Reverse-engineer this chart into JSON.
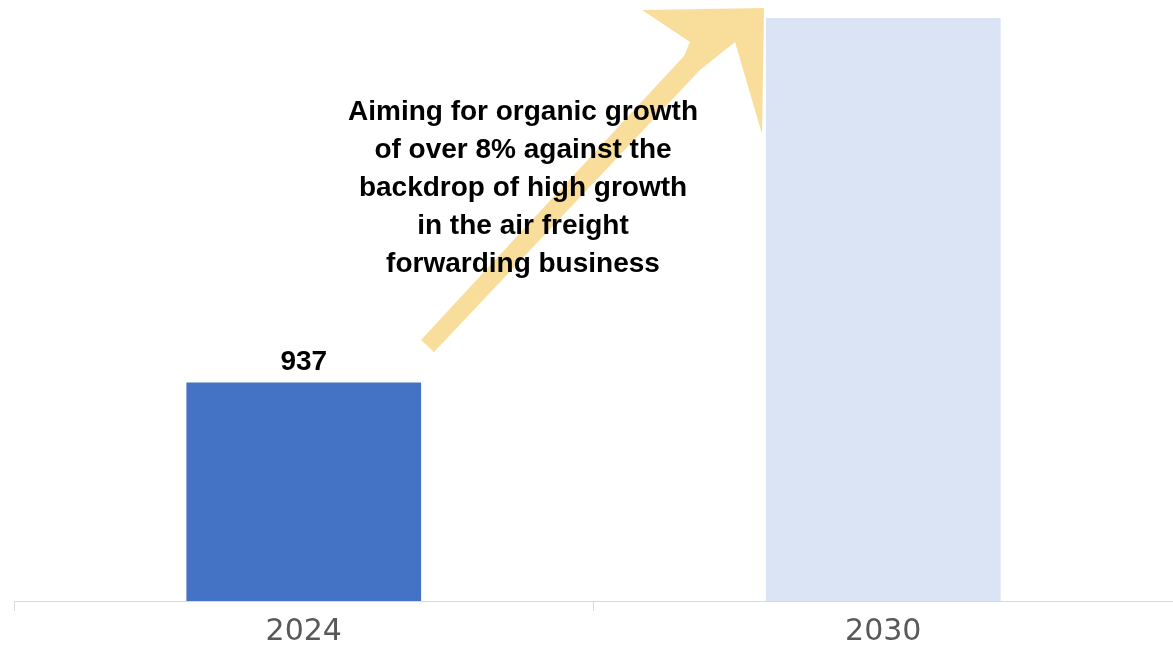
{
  "chart_data": {
    "type": "bar",
    "categories": [
      "2024",
      "2030"
    ],
    "values": [
      937,
      2500
    ],
    "colors": [
      "#4472c4",
      "#dbe4f4"
    ],
    "value_labels": [
      "937",
      null
    ],
    "annotations": [
      "Aiming for organic growth\nof over 8% against the\nbackdrop of high growth\nin the air freight\nforwarding business"
    ],
    "grid": false,
    "legend": false
  }
}
